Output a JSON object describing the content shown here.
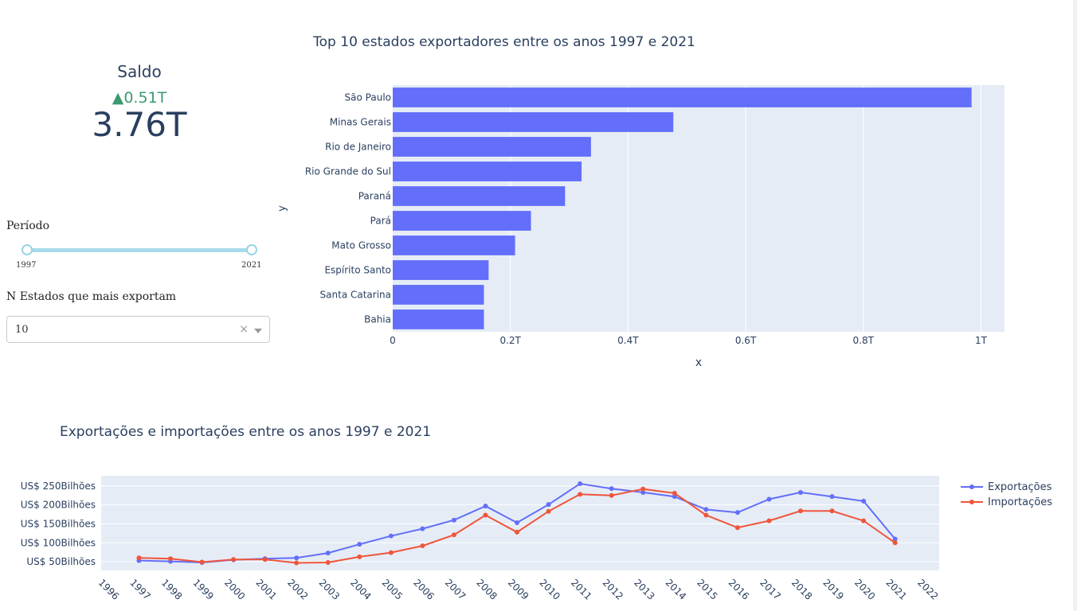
{
  "indicator": {
    "title": "Saldo",
    "delta": "▲0.51T",
    "value": "3.76T",
    "delta_color": "#3d9970"
  },
  "controls": {
    "period_label": "Período",
    "period_min_label": "1997",
    "period_max_label": "2021",
    "period_range": [
      1997,
      2021
    ],
    "n_states_label": "N Estados que mais exportam",
    "n_states_value": "10",
    "clear_glyph": "×"
  },
  "chart_data": [
    {
      "type": "bar",
      "orientation": "horizontal",
      "title": "Top 10 estados exportadores entre os anos 1997 e 2021",
      "xlabel": "x",
      "ylabel": "y",
      "categories": [
        "São Paulo",
        "Minas Gerais",
        "Rio de Janeiro",
        "Rio Grande do Sul",
        "Paraná",
        "Pará",
        "Mato Grosso",
        "Espírito Santo",
        "Santa Catarina",
        "Bahia"
      ],
      "values": [
        0.984,
        0.477,
        0.337,
        0.321,
        0.293,
        0.235,
        0.208,
        0.163,
        0.155,
        0.155
      ],
      "xlim": [
        0,
        1.04
      ],
      "xticks": [
        0,
        0.2,
        0.4,
        0.6,
        0.8,
        1
      ],
      "xtick_labels": [
        "0",
        "0.2T",
        "0.4T",
        "0.6T",
        "0.8T",
        "1T"
      ],
      "bar_color": "#636efa",
      "grid": true
    },
    {
      "type": "line",
      "title": "Exportações e importações entre os anos 1997 e 2021",
      "x": [
        1997,
        1998,
        1999,
        2000,
        2001,
        2002,
        2003,
        2004,
        2005,
        2006,
        2007,
        2008,
        2009,
        2010,
        2011,
        2012,
        2013,
        2014,
        2015,
        2016,
        2017,
        2018,
        2019,
        2020,
        2021
      ],
      "xlim": [
        1995.8,
        2022.4
      ],
      "xticks": [
        1996,
        1997,
        1998,
        1999,
        2000,
        2001,
        2002,
        2003,
        2004,
        2005,
        2006,
        2007,
        2008,
        2009,
        2010,
        2011,
        2012,
        2013,
        2014,
        2015,
        2016,
        2017,
        2018,
        2019,
        2020,
        2021,
        2022
      ],
      "ylim": [
        27,
        277
      ],
      "yticks": [
        50,
        100,
        150,
        200,
        250
      ],
      "ytick_labels": [
        "US$ 50Bilhões",
        "US$ 100Bilhões",
        "US$ 150Bilhões",
        "US$ 200Bilhões",
        "US$ 250Bilhões"
      ],
      "legend_position": "right",
      "grid": true,
      "series": [
        {
          "name": "Exportações",
          "color": "#636efa",
          "values": [
            53,
            51,
            48,
            55,
            58,
            60,
            73,
            96,
            118,
            137,
            160,
            197,
            153,
            201,
            256,
            243,
            233,
            222,
            188,
            180,
            215,
            233,
            222,
            210,
            110
          ]
        },
        {
          "name": "Importações",
          "color": "#ef553b",
          "values": [
            60,
            58,
            49,
            56,
            56,
            47,
            48,
            63,
            74,
            92,
            121,
            173,
            128,
            183,
            228,
            225,
            242,
            231,
            173,
            140,
            158,
            184,
            184,
            158,
            100
          ]
        }
      ]
    }
  ]
}
